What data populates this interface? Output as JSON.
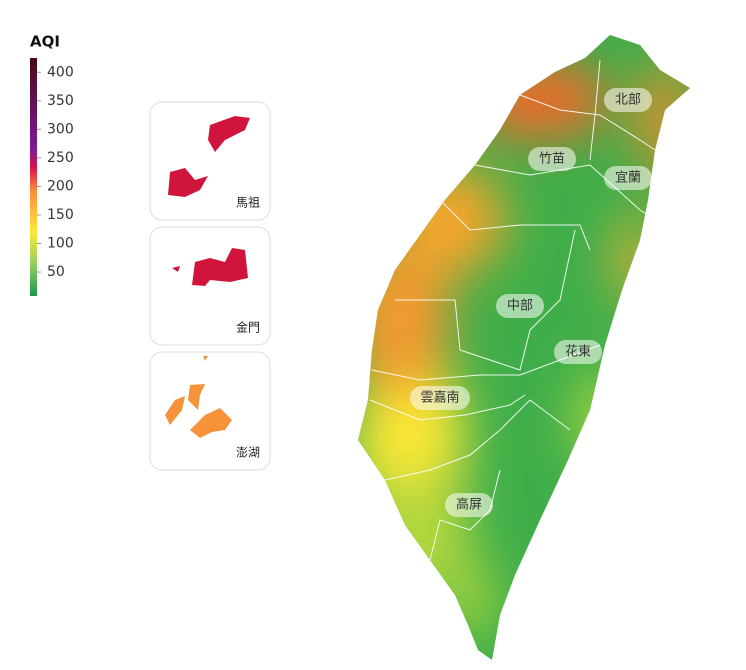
{
  "legend": {
    "title": "AQI",
    "range": [
      8,
      425
    ],
    "ticks": [
      50,
      100,
      150,
      200,
      250,
      300,
      350,
      400
    ]
  },
  "regions": [
    "北部",
    "竹苗",
    "宜蘭",
    "中部",
    "花東",
    "雲嘉南",
    "高屏"
  ],
  "insets": [
    "馬祖",
    "金門",
    "澎湖"
  ]
}
